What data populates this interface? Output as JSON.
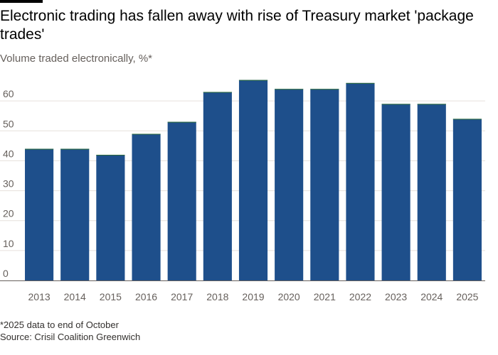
{
  "header": {
    "title": "Electronic trading has fallen away with rise of Treasury market 'package trades'",
    "subtitle": "Volume traded electronically, %*"
  },
  "footer": {
    "footnote": "*2025 data to end of October",
    "source": "Source: Crisil Coalition Greenwich"
  },
  "colors": {
    "bar": "#1e4f8b",
    "bar_top": "#2f6d3a"
  },
  "chart_data": {
    "type": "bar",
    "title": "Electronic trading has fallen away with rise of Treasury market 'package trades'",
    "subtitle": "Volume traded electronically, %*",
    "xlabel": "",
    "ylabel": "",
    "categories": [
      "2013",
      "2014",
      "2015",
      "2016",
      "2017",
      "2018",
      "2019",
      "2020",
      "2021",
      "2022",
      "2023",
      "2024",
      "2025"
    ],
    "values": [
      44,
      44,
      42,
      49,
      53,
      63,
      67,
      64,
      64,
      66,
      59,
      59,
      54
    ],
    "ylim": [
      0,
      70
    ],
    "yticks": [
      0,
      10,
      20,
      30,
      40,
      50,
      60
    ],
    "grid": true,
    "legend": "none"
  }
}
